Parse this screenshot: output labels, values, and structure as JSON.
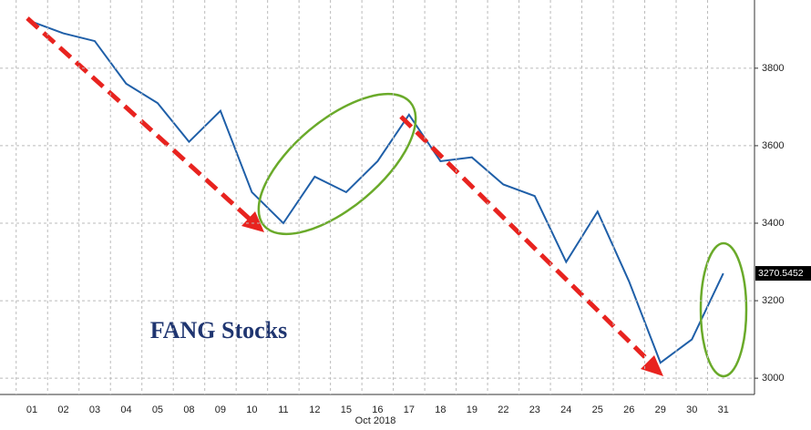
{
  "chart_data": {
    "type": "line",
    "annotation": "FANG Stocks",
    "x_label": "Oct 2018",
    "categories": [
      "01",
      "02",
      "03",
      "04",
      "05",
      "08",
      "09",
      "10",
      "11",
      "12",
      "15",
      "16",
      "17",
      "18",
      "19",
      "22",
      "23",
      "24",
      "25",
      "26",
      "29",
      "30",
      "31"
    ],
    "series": [
      {
        "name": "FANG",
        "color": "#1f5fa8",
        "values": [
          3920,
          3890,
          3870,
          3760,
          3710,
          3610,
          3690,
          3480,
          3400,
          3520,
          3480,
          3560,
          3680,
          3560,
          3570,
          3500,
          3470,
          3300,
          3430,
          3250,
          3040,
          3100,
          3270.5452
        ]
      }
    ],
    "ylim": [
      2958,
      3976
    ],
    "yticks": [
      3000,
      3200,
      3400,
      3600,
      3800
    ],
    "grid": true
  }
}
